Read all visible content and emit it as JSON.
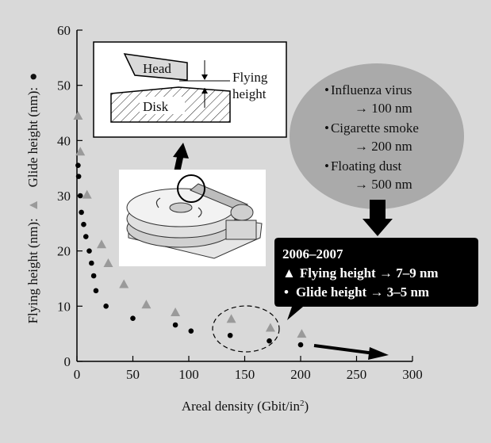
{
  "chart_data": {
    "type": "scatter",
    "title": "",
    "xlabel": "Areal density (Gbit/in",
    "xlabel_sup": "2",
    "xlabel_close": ")",
    "ylabel_flying": "Flying height (nm):",
    "ylabel_glide": "Glide height (nm):",
    "xlim": [
      0,
      300
    ],
    "ylim": [
      0,
      60
    ],
    "xticks": [
      "0",
      "50",
      "100",
      "150",
      "200",
      "250",
      "300"
    ],
    "yticks": [
      "0",
      "10",
      "20",
      "30",
      "40",
      "50",
      "60"
    ],
    "grid": false,
    "series": [
      {
        "name": "Flying height",
        "marker": "triangle",
        "color": "#9a9a9a",
        "points": [
          [
            1,
            44.5
          ],
          [
            3,
            38
          ],
          [
            9,
            30.2
          ],
          [
            22,
            21.2
          ],
          [
            28,
            17.8
          ],
          [
            42,
            14
          ],
          [
            62,
            10.3
          ],
          [
            88,
            8.9
          ],
          [
            138,
            7.7
          ],
          [
            173,
            6.1
          ],
          [
            201,
            5
          ]
        ]
      },
      {
        "name": "Glide height",
        "marker": "circle",
        "color": "#000000",
        "points": [
          [
            1,
            35.5
          ],
          [
            1.5,
            33.5
          ],
          [
            3,
            30
          ],
          [
            4,
            27
          ],
          [
            6,
            24.8
          ],
          [
            8,
            22.6
          ],
          [
            11,
            20
          ],
          [
            13,
            17.8
          ],
          [
            15,
            15.5
          ],
          [
            17,
            12.8
          ],
          [
            26,
            10
          ],
          [
            50,
            7.8
          ],
          [
            88,
            6.6
          ],
          [
            102,
            5.5
          ],
          [
            137,
            4.7
          ],
          [
            172,
            3.7
          ],
          [
            200,
            3
          ]
        ]
      }
    ]
  },
  "inset": {
    "head_label": "Head",
    "disk_label": "Disk",
    "flying_label_1": "Flying",
    "flying_label_2": "height"
  },
  "bubble": {
    "items": [
      {
        "name": "Influenza virus",
        "size": "→ 100 nm"
      },
      {
        "name": "Cigarette smoke",
        "size": "→ 200 nm"
      },
      {
        "name": "Floating dust",
        "size": "→ 500 nm"
      }
    ]
  },
  "callout": {
    "year": "2006–2007",
    "flying": "Flying height → 7–9 nm",
    "glide": "Glide height → 3–5 nm"
  },
  "colors": {
    "background": "#d9d9d9",
    "bubble": "#aaaaaa",
    "callout": "#000000",
    "triangle": "#9a9a9a"
  }
}
